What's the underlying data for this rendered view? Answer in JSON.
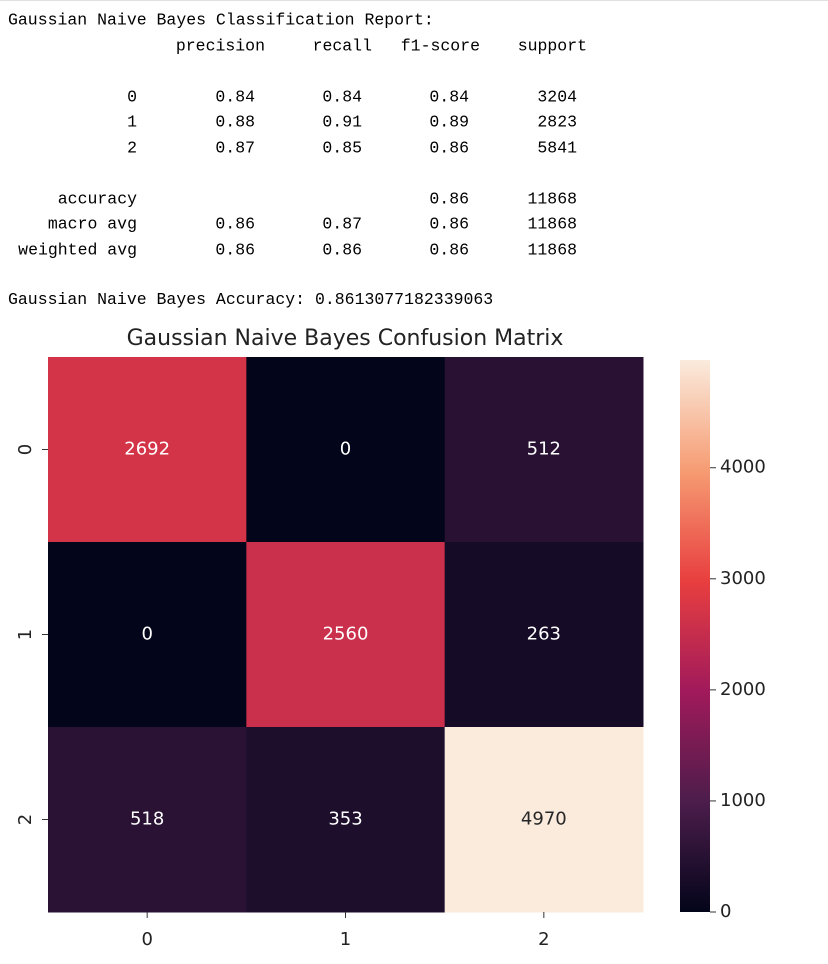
{
  "report": {
    "title": "Gaussian Naive Bayes Classification Report:",
    "header": [
      "precision",
      "recall",
      "f1-score",
      "support"
    ],
    "rows": [
      {
        "label": "0",
        "values": [
          0.84,
          0.84,
          0.84,
          3204
        ]
      },
      {
        "label": "1",
        "values": [
          0.88,
          0.91,
          0.89,
          2823
        ]
      },
      {
        "label": "2",
        "values": [
          0.87,
          0.85,
          0.86,
          5841
        ]
      },
      {
        "label": "accuracy",
        "values": [
          null,
          null,
          0.86,
          11868
        ]
      },
      {
        "label": "macro avg",
        "values": [
          0.86,
          0.87,
          0.86,
          11868
        ]
      },
      {
        "label": "weighted avg",
        "values": [
          0.86,
          0.86,
          0.86,
          11868
        ]
      }
    ],
    "accuracy_label": "Gaussian Naive Bayes Accuracy:",
    "accuracy_value": 0.8613077182339063
  },
  "chart_data": {
    "type": "heatmap",
    "title": "Gaussian Naive Bayes Confusion Matrix",
    "x_categories": [
      "0",
      "1",
      "2"
    ],
    "y_categories": [
      "0",
      "1",
      "2"
    ],
    "values": [
      [
        2692,
        0,
        512
      ],
      [
        0,
        2560,
        263
      ],
      [
        518,
        353,
        4970
      ]
    ],
    "clim": [
      0,
      4970
    ],
    "cticks": [
      0,
      1000,
      2000,
      3000,
      4000
    ],
    "colorscale": [
      "#03051a",
      "#4c1d4b",
      "#a11a5b",
      "#e83f3f",
      "#f69c73",
      "#faebdd"
    ]
  }
}
